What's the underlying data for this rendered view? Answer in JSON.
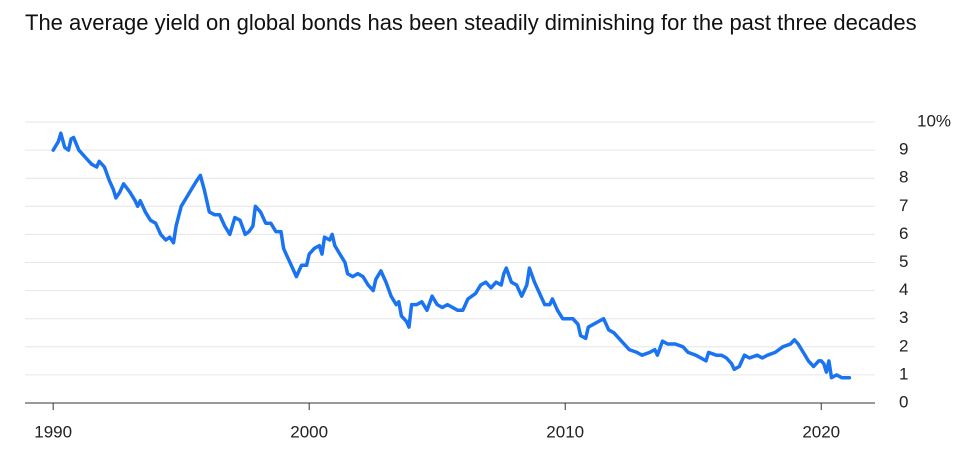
{
  "chart_data": {
    "type": "line",
    "title": "The average yield on global bonds has been steadily diminishing for the past three decades",
    "x": [
      1990.0,
      1990.2,
      1990.3,
      1990.45,
      1990.6,
      1990.7,
      1990.8,
      1991.0,
      1991.3,
      1991.5,
      1991.7,
      1991.8,
      1992.0,
      1992.2,
      1992.35,
      1992.45,
      1992.6,
      1992.75,
      1993.0,
      1993.2,
      1993.3,
      1993.4,
      1993.6,
      1993.8,
      1994.0,
      1994.2,
      1994.4,
      1994.55,
      1994.7,
      1994.8,
      1995.0,
      1995.2,
      1995.4,
      1995.6,
      1995.75,
      1995.9,
      1996.1,
      1996.3,
      1996.5,
      1996.7,
      1996.9,
      1997.1,
      1997.3,
      1997.5,
      1997.65,
      1997.8,
      1997.9,
      1998.1,
      1998.3,
      1998.5,
      1998.7,
      1998.9,
      1999.0,
      1999.1,
      1999.2,
      1999.4,
      1999.5,
      1999.7,
      1999.9,
      2000.0,
      2000.2,
      2000.4,
      2000.5,
      2000.6,
      2000.8,
      2000.9,
      2001.0,
      2001.2,
      2001.4,
      2001.5,
      2001.7,
      2001.9,
      2002.1,
      2002.3,
      2002.5,
      2002.6,
      2002.8,
      2003.0,
      2003.2,
      2003.4,
      2003.5,
      2003.6,
      2003.8,
      2003.9,
      2004.0,
      2004.2,
      2004.4,
      2004.6,
      2004.8,
      2005.0,
      2005.2,
      2005.4,
      2005.6,
      2005.8,
      2006.0,
      2006.2,
      2006.5,
      2006.7,
      2006.9,
      2007.1,
      2007.3,
      2007.5,
      2007.6,
      2007.7,
      2007.9,
      2008.1,
      2008.3,
      2008.5,
      2008.6,
      2008.8,
      2009.0,
      2009.2,
      2009.4,
      2009.5,
      2009.7,
      2009.9,
      2010.1,
      2010.3,
      2010.5,
      2010.6,
      2010.8,
      2010.9,
      2011.1,
      2011.3,
      2011.5,
      2011.7,
      2011.9,
      2012.1,
      2012.3,
      2012.5,
      2012.8,
      2013.0,
      2013.3,
      2013.5,
      2013.6,
      2013.8,
      2014.0,
      2014.3,
      2014.6,
      2014.8,
      2015.1,
      2015.3,
      2015.5,
      2015.6,
      2015.9,
      2016.1,
      2016.3,
      2016.5,
      2016.6,
      2016.8,
      2017.0,
      2017.2,
      2017.5,
      2017.7,
      2017.9,
      2018.2,
      2018.5,
      2018.8,
      2018.95,
      2019.1,
      2019.3,
      2019.5,
      2019.7,
      2019.9,
      2020.0,
      2020.1,
      2020.2,
      2020.3,
      2020.4,
      2020.6,
      2020.8,
      2021.0,
      2021.1
    ],
    "values": [
      9.0,
      9.3,
      9.6,
      9.1,
      9.0,
      9.4,
      9.45,
      9.0,
      8.7,
      8.5,
      8.4,
      8.6,
      8.4,
      7.9,
      7.6,
      7.3,
      7.5,
      7.8,
      7.5,
      7.2,
      7.0,
      7.2,
      6.8,
      6.5,
      6.4,
      6.0,
      5.8,
      5.9,
      5.7,
      6.3,
      7.0,
      7.3,
      7.6,
      7.9,
      8.1,
      7.6,
      6.8,
      6.7,
      6.7,
      6.3,
      6.0,
      6.6,
      6.5,
      6.0,
      6.1,
      6.3,
      7.0,
      6.8,
      6.4,
      6.4,
      6.1,
      6.1,
      5.5,
      5.3,
      5.1,
      4.7,
      4.5,
      4.9,
      4.9,
      5.3,
      5.5,
      5.6,
      5.3,
      5.9,
      5.8,
      6.0,
      5.6,
      5.3,
      5.0,
      4.6,
      4.5,
      4.6,
      4.5,
      4.2,
      4.0,
      4.4,
      4.7,
      4.3,
      3.8,
      3.5,
      3.6,
      3.1,
      2.9,
      2.7,
      3.5,
      3.5,
      3.6,
      3.3,
      3.8,
      3.5,
      3.4,
      3.5,
      3.4,
      3.3,
      3.3,
      3.7,
      3.9,
      4.2,
      4.3,
      4.1,
      4.3,
      4.2,
      4.6,
      4.8,
      4.3,
      4.2,
      3.8,
      4.2,
      4.8,
      4.3,
      3.9,
      3.5,
      3.5,
      3.7,
      3.3,
      3.0,
      3.0,
      3.0,
      2.8,
      2.4,
      2.3,
      2.7,
      2.8,
      2.9,
      3.0,
      2.6,
      2.5,
      2.3,
      2.1,
      1.9,
      1.8,
      1.7,
      1.8,
      1.9,
      1.7,
      2.2,
      2.1,
      2.1,
      2.0,
      1.8,
      1.7,
      1.6,
      1.5,
      1.8,
      1.7,
      1.7,
      1.6,
      1.4,
      1.2,
      1.3,
      1.7,
      1.6,
      1.7,
      1.6,
      1.7,
      1.8,
      2.0,
      2.1,
      2.25,
      2.1,
      1.8,
      1.5,
      1.3,
      1.5,
      1.5,
      1.4,
      1.1,
      1.5,
      0.9,
      1.0,
      0.9,
      0.9,
      0.9
    ],
    "color": "#1a73f0",
    "xlim": [
      1988.9,
      2022.1
    ],
    "xticks": [
      1990,
      2000,
      2010,
      2020
    ],
    "ylim": [
      0,
      10
    ],
    "yticks": [
      0,
      1,
      2,
      3,
      4,
      5,
      6,
      7,
      8,
      9,
      {
        "value": 10,
        "label": "10%"
      }
    ],
    "grid": true
  }
}
